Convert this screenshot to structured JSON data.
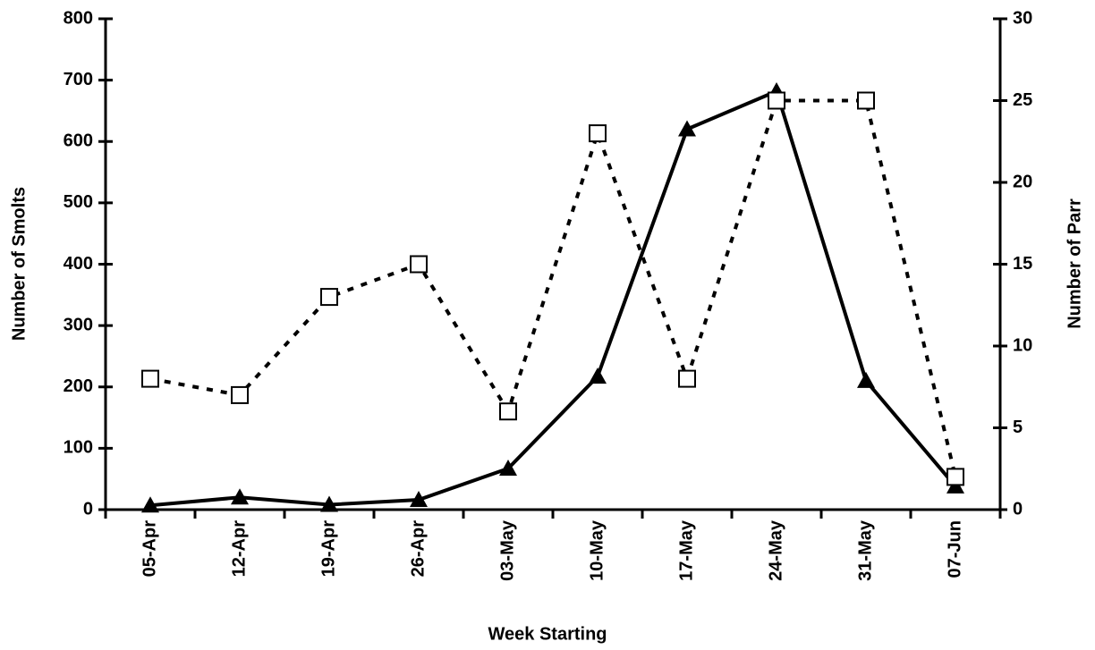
{
  "chart_data": {
    "type": "line",
    "x_label": "Week Starting",
    "y_label": "Number of Smolts",
    "y2_label": "Number of Parr",
    "categories": [
      "05-Apr",
      "12-Apr",
      "19-Apr",
      "26-Apr",
      "03-May",
      "10-May",
      "17-May",
      "24-May",
      "31-May",
      "07-Jun"
    ],
    "series": [
      {
        "color": "#000000",
        "marker": "triangle",
        "line_style": "solid",
        "axis": "y",
        "values": [
          7,
          20,
          8,
          16,
          67,
          217,
          620,
          682,
          210,
          38
        ]
      },
      {
        "color": "#000000",
        "marker": "square",
        "line_style": "dashed",
        "axis": "y2",
        "values": [
          8,
          7,
          13,
          15,
          6,
          23,
          8,
          25,
          25,
          2
        ]
      }
    ],
    "ylim": [
      0,
      800
    ],
    "yticks": [
      0,
      100,
      200,
      300,
      400,
      500,
      600,
      700,
      800
    ],
    "y2lim": [
      0,
      30
    ],
    "y2ticks": [
      0,
      5,
      10,
      15,
      20,
      25,
      30
    ],
    "grid": false
  }
}
